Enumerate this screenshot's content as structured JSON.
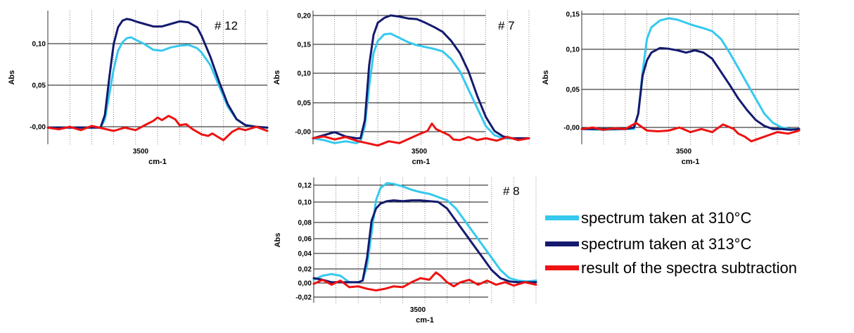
{
  "colors": {
    "s310": "#36c9ee",
    "s313": "#141a6e",
    "diff": "#ee1212"
  },
  "legend": [
    {
      "label": "spectrum taken at 310°C",
      "color": "#36c9ee"
    },
    {
      "label": "spectrum taken at 313°C",
      "color": "#141a6e"
    },
    {
      "label": "result of the spectra subtraction",
      "color": "#ee1212"
    }
  ],
  "chart_data": [
    {
      "type": "line",
      "panel_label": "# 12",
      "xlabel": "cm-1",
      "ylabel": "Abs",
      "x_tick_labels": [
        "3500"
      ],
      "y_tick_labels": [
        "-0,00",
        "0,05",
        "0,10"
      ],
      "ylim": [
        -0.02,
        0.14
      ],
      "xlim": [
        0,
        100
      ],
      "grid": true,
      "series": [
        {
          "name": "spectrum taken at 310°C",
          "x": [
            0,
            24,
            26,
            28,
            30,
            32,
            34,
            36,
            38,
            40,
            44,
            48,
            52,
            56,
            60,
            64,
            68,
            70,
            74,
            78,
            82,
            86,
            90,
            95,
            100
          ],
          "values": [
            0.0,
            0.0,
            0.01,
            0.04,
            0.07,
            0.092,
            0.102,
            0.107,
            0.108,
            0.105,
            0.1,
            0.093,
            0.092,
            0.096,
            0.098,
            0.099,
            0.095,
            0.09,
            0.075,
            0.05,
            0.025,
            0.01,
            0.003,
            0.001,
            0.0
          ]
        },
        {
          "name": "spectrum taken at 313°C",
          "x": [
            0,
            24,
            26,
            28,
            30,
            32,
            34,
            36,
            38,
            40,
            44,
            48,
            52,
            56,
            60,
            64,
            68,
            70,
            74,
            78,
            82,
            86,
            90,
            95,
            100
          ],
          "values": [
            0.0,
            0.0,
            0.015,
            0.06,
            0.1,
            0.12,
            0.128,
            0.13,
            0.129,
            0.127,
            0.124,
            0.121,
            0.121,
            0.124,
            0.127,
            0.126,
            0.12,
            0.11,
            0.085,
            0.055,
            0.028,
            0.01,
            0.003,
            0.001,
            0.0
          ]
        },
        {
          "name": "result of the spectra subtraction",
          "x": [
            0,
            5,
            10,
            15,
            20,
            25,
            30,
            35,
            40,
            45,
            48,
            50,
            52,
            55,
            58,
            60,
            63,
            66,
            70,
            73,
            75,
            78,
            80,
            84,
            87,
            90,
            95,
            100
          ],
          "values": [
            0.0,
            -0.002,
            0.001,
            -0.003,
            0.002,
            -0.001,
            -0.004,
            0.0,
            -0.003,
            0.004,
            0.008,
            0.012,
            0.009,
            0.014,
            0.01,
            0.003,
            0.004,
            -0.002,
            -0.008,
            -0.01,
            -0.007,
            -0.012,
            -0.015,
            -0.005,
            -0.001,
            -0.003,
            0.001,
            -0.004
          ]
        }
      ]
    },
    {
      "type": "line",
      "panel_label": "# 7",
      "xlabel": "cm-1",
      "ylabel": "Abs",
      "x_tick_labels": [
        "3500"
      ],
      "y_tick_labels": [
        "-0,00",
        "0,05",
        "0,10",
        "0,15",
        "0,20"
      ],
      "ylim": [
        -0.01,
        0.21
      ],
      "xlim": [
        0,
        100
      ],
      "grid": true,
      "series": [
        {
          "name": "spectrum taken at 310°C",
          "x": [
            0,
            5,
            10,
            15,
            20,
            22,
            24,
            26,
            28,
            30,
            33,
            36,
            40,
            44,
            48,
            52,
            56,
            60,
            64,
            68,
            72,
            76,
            80,
            84,
            88,
            92,
            96,
            100
          ],
          "values": [
            0.0,
            -0.003,
            -0.008,
            -0.005,
            -0.008,
            -0.005,
            0.02,
            0.085,
            0.14,
            0.16,
            0.171,
            0.172,
            0.165,
            0.158,
            0.153,
            0.15,
            0.147,
            0.143,
            0.13,
            0.11,
            0.08,
            0.05,
            0.02,
            0.005,
            0.0,
            0.0,
            -0.001,
            0.0
          ]
        },
        {
          "name": "spectrum taken at 313°C",
          "x": [
            0,
            5,
            10,
            15,
            20,
            22,
            24,
            26,
            28,
            30,
            33,
            36,
            40,
            44,
            48,
            52,
            56,
            60,
            64,
            68,
            72,
            76,
            80,
            84,
            88,
            92,
            96,
            100
          ],
          "values": [
            0.0,
            0.005,
            0.01,
            0.003,
            0.0,
            0.0,
            0.03,
            0.12,
            0.17,
            0.19,
            0.198,
            0.202,
            0.2,
            0.197,
            0.196,
            0.19,
            0.183,
            0.175,
            0.16,
            0.14,
            0.11,
            0.07,
            0.035,
            0.012,
            0.003,
            0.0,
            0.0,
            0.0
          ]
        },
        {
          "name": "result of the spectra subtraction",
          "x": [
            0,
            5,
            10,
            15,
            20,
            25,
            30,
            35,
            40,
            45,
            50,
            53,
            55,
            57,
            60,
            63,
            65,
            68,
            72,
            76,
            80,
            85,
            90,
            95,
            100
          ],
          "values": [
            0.0,
            0.003,
            -0.002,
            0.002,
            -0.004,
            -0.008,
            -0.012,
            -0.005,
            -0.008,
            0.0,
            0.008,
            0.012,
            0.024,
            0.015,
            0.01,
            0.005,
            -0.002,
            -0.003,
            0.002,
            -0.003,
            0.0,
            -0.004,
            0.002,
            -0.003,
            0.0
          ]
        }
      ]
    },
    {
      "type": "line",
      "panel_label": "",
      "xlabel": "cm-1",
      "ylabel": "Abs",
      "x_tick_labels": [
        "3500"
      ],
      "y_tick_labels": [
        "-0,00",
        "0,05",
        "0,10",
        "0,15"
      ],
      "ylim": [
        -0.02,
        0.155
      ],
      "xlim": [
        0,
        100
      ],
      "grid": true,
      "series": [
        {
          "name": "spectrum taken at 310°C",
          "x": [
            0,
            10,
            20,
            24,
            26,
            28,
            30,
            32,
            36,
            40,
            44,
            48,
            52,
            56,
            60,
            64,
            68,
            72,
            76,
            80,
            84,
            88,
            92,
            96,
            100
          ],
          "values": [
            0.0,
            -0.001,
            0.0,
            0.0,
            0.02,
            0.075,
            0.118,
            0.133,
            0.142,
            0.145,
            0.143,
            0.139,
            0.135,
            0.132,
            0.128,
            0.118,
            0.1,
            0.08,
            0.06,
            0.04,
            0.02,
            0.008,
            0.002,
            0.0,
            -0.001
          ]
        },
        {
          "name": "spectrum taken at 313°C",
          "x": [
            0,
            10,
            20,
            24,
            26,
            28,
            30,
            32,
            36,
            40,
            44,
            48,
            52,
            56,
            60,
            64,
            68,
            72,
            76,
            80,
            84,
            88,
            92,
            96,
            100
          ],
          "values": [
            0.0,
            0.0,
            0.0,
            0.002,
            0.02,
            0.07,
            0.09,
            0.1,
            0.106,
            0.105,
            0.103,
            0.1,
            0.103,
            0.1,
            0.092,
            0.075,
            0.058,
            0.04,
            0.025,
            0.012,
            0.004,
            0.0,
            0.0,
            -0.001,
            0.0
          ]
        },
        {
          "name": "result of the spectra subtraction",
          "x": [
            0,
            5,
            10,
            15,
            20,
            25,
            30,
            35,
            40,
            45,
            50,
            55,
            60,
            65,
            70,
            72,
            75,
            78,
            82,
            86,
            90,
            95,
            100
          ],
          "values": [
            0.0,
            0.002,
            -0.001,
            0.001,
            0.0,
            0.008,
            -0.002,
            -0.003,
            -0.002,
            0.002,
            -0.004,
            0.0,
            -0.004,
            0.006,
            0.0,
            -0.006,
            -0.01,
            -0.016,
            -0.012,
            -0.008,
            -0.004,
            -0.006,
            -0.002
          ]
        }
      ]
    },
    {
      "type": "line",
      "panel_label": "# 8",
      "xlabel": "cm-1",
      "ylabel": "Abs",
      "x_tick_labels": [
        "3500"
      ],
      "y_tick_labels": [
        "-0,02",
        "0,00",
        "0,02",
        "0,04",
        "0,06",
        "0,08",
        "0,10",
        "0,12"
      ],
      "ylim": [
        -0.025,
        0.128
      ],
      "xlim": [
        0,
        100
      ],
      "grid": true,
      "series": [
        {
          "name": "spectrum taken at 310°C",
          "x": [
            0,
            4,
            8,
            12,
            16,
            20,
            22,
            24,
            26,
            28,
            30,
            33,
            36,
            40,
            44,
            48,
            52,
            56,
            60,
            64,
            68,
            72,
            76,
            80,
            84,
            88,
            92,
            96,
            100
          ],
          "values": [
            0.003,
            0.008,
            0.01,
            0.008,
            0.0,
            0.0,
            0.002,
            0.02,
            0.06,
            0.1,
            0.115,
            0.121,
            0.12,
            0.117,
            0.113,
            0.11,
            0.108,
            0.104,
            0.1,
            0.09,
            0.075,
            0.06,
            0.045,
            0.03,
            0.015,
            0.005,
            0.002,
            0.001,
            0.002
          ]
        },
        {
          "name": "spectrum taken at 313°C",
          "x": [
            0,
            4,
            8,
            12,
            16,
            20,
            22,
            24,
            26,
            28,
            30,
            33,
            36,
            40,
            44,
            48,
            52,
            56,
            60,
            64,
            68,
            72,
            76,
            80,
            84,
            88,
            92,
            96,
            100
          ],
          "values": [
            0.005,
            0.003,
            0.0,
            0.0,
            0.0,
            0.0,
            0.002,
            0.03,
            0.075,
            0.09,
            0.096,
            0.099,
            0.1,
            0.099,
            0.1,
            0.1,
            0.099,
            0.098,
            0.09,
            0.075,
            0.06,
            0.045,
            0.03,
            0.015,
            0.005,
            0.001,
            0.0,
            0.0,
            0.0
          ]
        },
        {
          "name": "result of the spectra subtraction",
          "x": [
            0,
            4,
            8,
            12,
            16,
            20,
            24,
            28,
            32,
            36,
            40,
            44,
            48,
            52,
            55,
            57,
            60,
            63,
            66,
            70,
            74,
            78,
            82,
            86,
            90,
            95,
            100
          ],
          "values": [
            -0.002,
            0.003,
            -0.003,
            0.002,
            -0.006,
            -0.005,
            -0.008,
            -0.01,
            -0.008,
            -0.005,
            -0.006,
            0.0,
            0.005,
            0.003,
            0.012,
            0.008,
            0.0,
            -0.005,
            0.0,
            0.003,
            -0.003,
            0.002,
            -0.003,
            0.0,
            -0.004,
            0.0,
            -0.003
          ]
        }
      ]
    }
  ]
}
